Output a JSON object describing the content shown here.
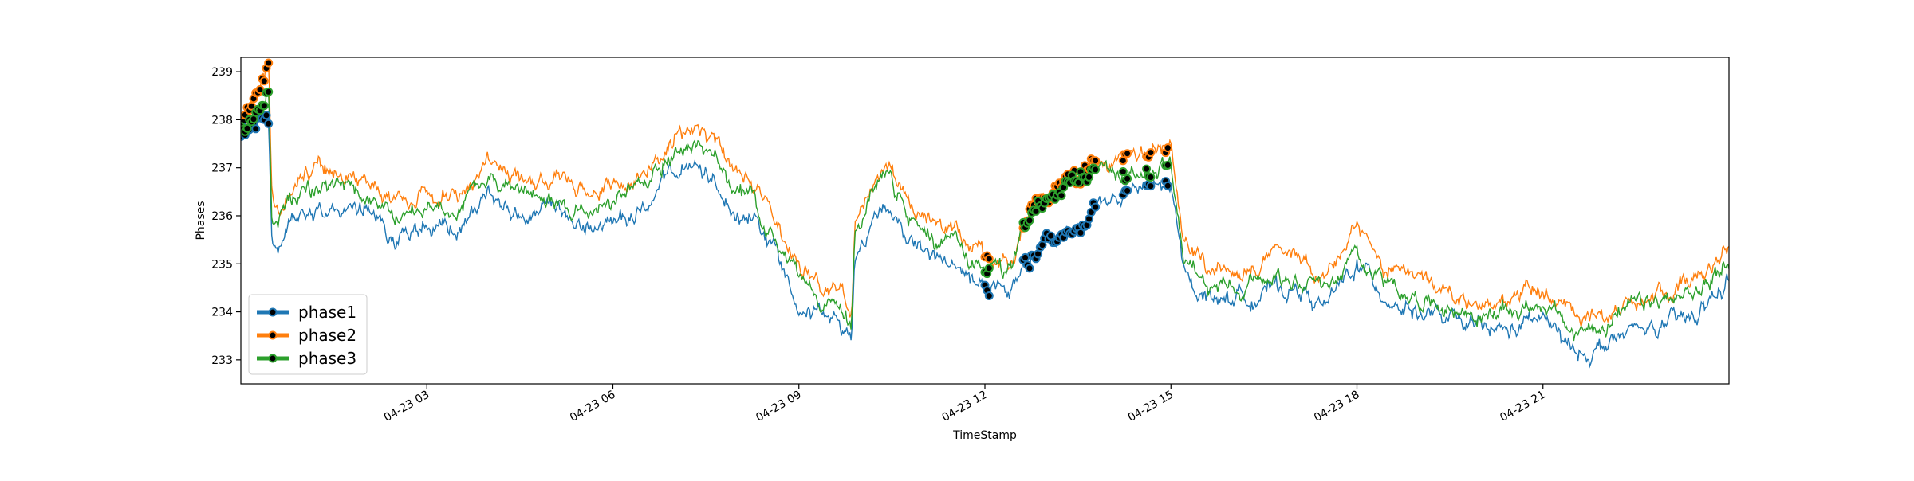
{
  "chart_data": {
    "type": "line",
    "xlabel": "TimeStamp",
    "ylabel": "Phases",
    "x_ticks": [
      "04-23 03",
      "04-23 06",
      "04-23 09",
      "04-23 12",
      "04-23 15",
      "04-23 18",
      "04-23 21"
    ],
    "x_tick_hours": [
      3,
      6,
      9,
      12,
      15,
      18,
      21
    ],
    "xlim_hours": [
      0,
      24
    ],
    "y_ticks": [
      233,
      234,
      235,
      236,
      237,
      238,
      239
    ],
    "ylim": [
      232.5,
      239.3
    ],
    "legend_position": "lower-left",
    "grid": false,
    "series": [
      {
        "name": "phase1",
        "color": "#1f77b4",
        "hours": [
          0,
          0.2,
          0.35,
          0.45,
          0.5,
          0.6,
          0.8,
          1.0,
          1.5,
          2.0,
          2.5,
          3.0,
          3.5,
          4.0,
          4.5,
          5.0,
          5.5,
          6.0,
          6.5,
          7.0,
          7.3,
          7.6,
          8.0,
          8.3,
          8.6,
          9.0,
          9.5,
          9.85,
          9.9,
          10.2,
          10.4,
          10.8,
          11.2,
          11.6,
          12.0,
          12.1,
          12.4,
          12.6,
          12.8,
          13.0,
          13.3,
          13.6,
          13.8,
          14.0,
          14.4,
          14.8,
          15.0,
          15.2,
          15.6,
          16.0,
          16.5,
          17.0,
          17.5,
          18.0,
          18.5,
          19.0,
          19.5,
          20.0,
          20.5,
          21.0,
          21.5,
          22.0,
          22.5,
          23.0,
          23.5,
          24.0
        ],
        "values": [
          237.6,
          237.8,
          238.0,
          237.9,
          235.5,
          235.3,
          235.9,
          236.2,
          236.2,
          236.0,
          235.6,
          235.7,
          235.7,
          236.4,
          236.0,
          236.0,
          235.7,
          235.9,
          236.1,
          236.9,
          237.0,
          236.7,
          236.1,
          235.9,
          235.3,
          234.3,
          233.8,
          233.4,
          235.2,
          235.9,
          236.3,
          235.5,
          235.1,
          234.8,
          234.5,
          234.5,
          234.2,
          235.0,
          235.1,
          235.4,
          235.6,
          235.9,
          236.3,
          236.3,
          236.5,
          236.6,
          236.6,
          234.8,
          234.3,
          234.3,
          234.4,
          234.5,
          234.1,
          235.0,
          234.3,
          234.0,
          233.8,
          233.6,
          233.6,
          233.9,
          233.1,
          233.3,
          233.6,
          233.7,
          233.9,
          234.7
        ]
      },
      {
        "name": "phase2",
        "color": "#ff7f0e",
        "hours": [
          0,
          0.2,
          0.35,
          0.45,
          0.5,
          0.6,
          0.8,
          1.0,
          1.5,
          2.0,
          2.5,
          3.0,
          3.5,
          4.0,
          4.5,
          5.0,
          5.5,
          6.0,
          6.5,
          7.0,
          7.3,
          7.6,
          8.0,
          8.3,
          8.6,
          9.0,
          9.5,
          9.85,
          9.9,
          10.2,
          10.4,
          10.8,
          11.2,
          11.6,
          12.0,
          12.1,
          12.4,
          12.6,
          12.8,
          13.0,
          13.3,
          13.6,
          13.8,
          14.0,
          14.4,
          14.8,
          15.0,
          15.2,
          15.6,
          16.0,
          16.5,
          17.0,
          17.5,
          18.0,
          18.5,
          19.0,
          19.5,
          20.0,
          20.5,
          21.0,
          21.5,
          22.0,
          22.5,
          23.0,
          23.5,
          24.0
        ],
        "values": [
          238.1,
          238.4,
          238.6,
          239.0,
          236.3,
          236.0,
          236.6,
          236.9,
          236.9,
          236.7,
          236.3,
          236.4,
          236.4,
          237.2,
          236.7,
          236.7,
          236.5,
          236.6,
          236.9,
          237.7,
          237.8,
          237.5,
          236.8,
          236.6,
          236.0,
          235.0,
          234.5,
          234.1,
          236.0,
          236.8,
          237.1,
          236.2,
          235.8,
          235.6,
          235.2,
          235.2,
          234.9,
          235.9,
          236.3,
          236.5,
          236.8,
          236.9,
          237.3,
          237.2,
          237.2,
          237.3,
          237.4,
          235.4,
          234.9,
          235.0,
          235.1,
          235.2,
          234.8,
          235.6,
          234.9,
          234.6,
          234.4,
          234.2,
          234.3,
          234.5,
          233.8,
          234.0,
          234.3,
          234.4,
          234.6,
          235.3
        ]
      },
      {
        "name": "phase3",
        "color": "#2ca02c",
        "hours": [
          0,
          0.2,
          0.35,
          0.45,
          0.5,
          0.6,
          0.8,
          1.0,
          1.5,
          2.0,
          2.5,
          3.0,
          3.5,
          4.0,
          4.5,
          5.0,
          5.5,
          6.0,
          6.5,
          7.0,
          7.3,
          7.6,
          8.0,
          8.3,
          8.6,
          9.0,
          9.5,
          9.85,
          9.9,
          10.2,
          10.4,
          10.8,
          11.2,
          11.6,
          12.0,
          12.1,
          12.4,
          12.6,
          12.8,
          13.0,
          13.3,
          13.6,
          13.8,
          14.0,
          14.4,
          14.8,
          15.0,
          15.2,
          15.6,
          16.0,
          16.5,
          17.0,
          17.5,
          18.0,
          18.5,
          19.0,
          19.5,
          20.0,
          20.5,
          21.0,
          21.5,
          22.0,
          22.5,
          23.0,
          23.5,
          24.0
        ],
        "values": [
          237.9,
          238.1,
          238.3,
          238.6,
          236.0,
          235.8,
          236.3,
          236.6,
          236.6,
          236.4,
          236.0,
          236.1,
          236.1,
          236.9,
          236.4,
          236.4,
          236.1,
          236.3,
          236.6,
          237.4,
          237.5,
          237.2,
          236.5,
          236.2,
          235.6,
          234.7,
          234.2,
          233.8,
          235.7,
          236.5,
          236.8,
          235.9,
          235.5,
          235.3,
          234.9,
          234.9,
          234.7,
          235.6,
          236.1,
          236.3,
          236.5,
          236.7,
          237.0,
          236.9,
          236.9,
          237.0,
          237.1,
          235.0,
          234.5,
          234.6,
          234.7,
          234.8,
          234.5,
          235.3,
          234.6,
          234.3,
          234.1,
          233.9,
          234.0,
          234.2,
          233.5,
          233.8,
          234.1,
          234.2,
          234.4,
          235.1
        ]
      }
    ],
    "marker_windows_hours": [
      [
        0,
        0.45
      ],
      [
        12.0,
        12.08
      ],
      [
        12.6,
        13.8
      ],
      [
        14.2,
        14.3
      ],
      [
        14.6,
        14.7
      ],
      [
        14.9,
        14.95
      ]
    ]
  }
}
